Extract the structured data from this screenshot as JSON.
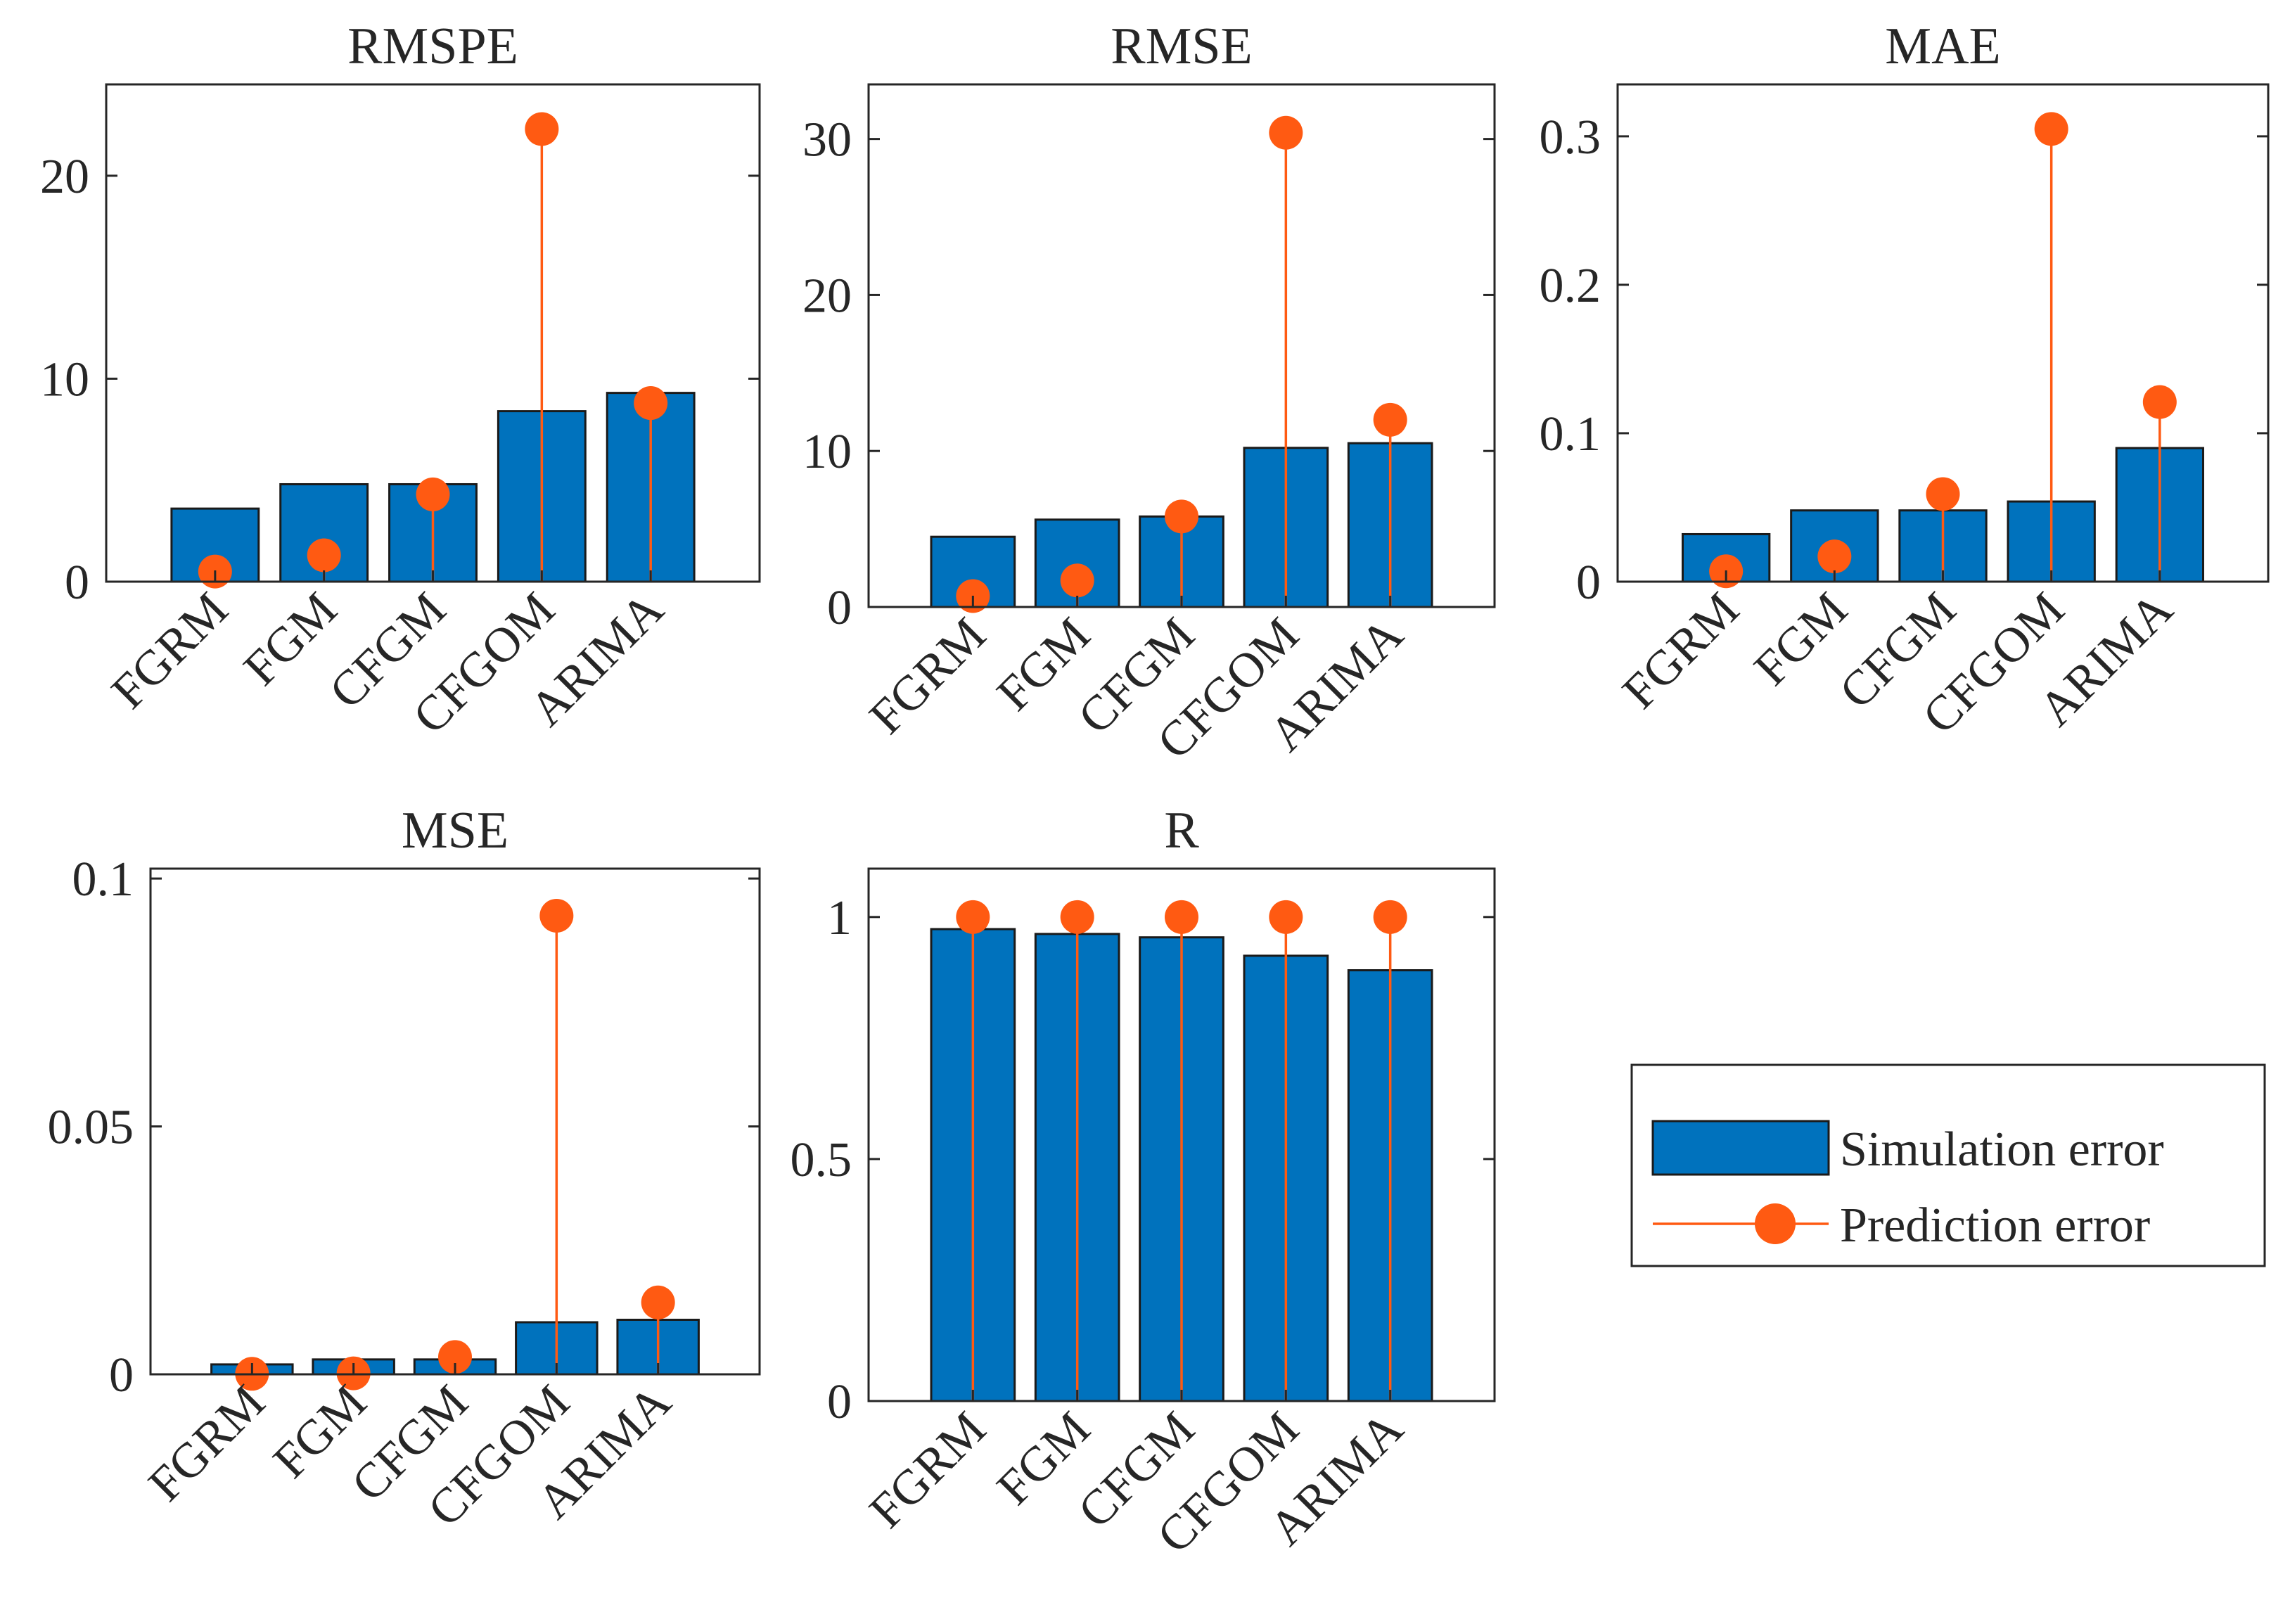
{
  "colors": {
    "bar": "#0072BD",
    "marker": "#FF5A12",
    "axis": "#262626"
  },
  "legend": {
    "simulation_label": "Simulation error",
    "prediction_label": "Prediction error"
  },
  "chart_data": [
    {
      "type": "bar",
      "title": "RMSPE",
      "categories": [
        "FGRM",
        "FGM",
        "CFGM",
        "CFGOM",
        "ARIMA"
      ],
      "series": [
        {
          "name": "Simulation error",
          "kind": "bar",
          "values": [
            3.6,
            4.8,
            4.8,
            8.4,
            9.3
          ]
        },
        {
          "name": "Prediction error",
          "kind": "stem",
          "values": [
            0.5,
            1.3,
            4.3,
            22.3,
            8.8
          ]
        }
      ],
      "ylim": [
        0,
        24.5
      ],
      "yticks": [
        0,
        10,
        20
      ],
      "ytick_labels": [
        "0",
        "10",
        "20"
      ]
    },
    {
      "type": "bar",
      "title": "RMSE",
      "categories": [
        "FGRM",
        "FGM",
        "CFGM",
        "CFGOM",
        "ARIMA"
      ],
      "series": [
        {
          "name": "Simulation error",
          "kind": "bar",
          "values": [
            4.5,
            5.6,
            5.8,
            10.2,
            10.5
          ]
        },
        {
          "name": "Prediction error",
          "kind": "stem",
          "values": [
            0.7,
            1.7,
            5.8,
            30.4,
            12.0
          ]
        }
      ],
      "ylim": [
        0,
        33.5
      ],
      "yticks": [
        0,
        10,
        20,
        30
      ],
      "ytick_labels": [
        "0",
        "10",
        "20",
        "30"
      ]
    },
    {
      "type": "bar",
      "title": "MAE",
      "categories": [
        "FGRM",
        "FGM",
        "CFGM",
        "CFGOM",
        "ARIMA"
      ],
      "series": [
        {
          "name": "Simulation error",
          "kind": "bar",
          "values": [
            0.032,
            0.048,
            0.048,
            0.054,
            0.09
          ]
        },
        {
          "name": "Prediction error",
          "kind": "stem",
          "values": [
            0.007,
            0.017,
            0.059,
            0.305,
            0.121
          ]
        }
      ],
      "ylim": [
        0,
        0.335
      ],
      "yticks": [
        0,
        0.1,
        0.2,
        0.3
      ],
      "ytick_labels": [
        "0",
        "0.1",
        "0.2",
        "0.3"
      ]
    },
    {
      "type": "bar",
      "title": "MSE",
      "categories": [
        "FGRM",
        "FGM",
        "CFGM",
        "CFGOM",
        "ARIMA"
      ],
      "series": [
        {
          "name": "Simulation error",
          "kind": "bar",
          "values": [
            0.002,
            0.003,
            0.003,
            0.0105,
            0.011
          ]
        },
        {
          "name": "Prediction error",
          "kind": "stem",
          "values": [
            0.0001,
            0.0002,
            0.0035,
            0.0925,
            0.0145
          ]
        }
      ],
      "ylim": [
        0,
        0.102
      ],
      "yticks": [
        0,
        0.05,
        0.1
      ],
      "ytick_labels": [
        "0",
        "0.05",
        "0.1"
      ]
    },
    {
      "type": "bar",
      "title": "R",
      "categories": [
        "FGRM",
        "FGM",
        "CFGM",
        "CFGOM",
        "ARIMA"
      ],
      "series": [
        {
          "name": "Simulation error",
          "kind": "bar",
          "values": [
            0.975,
            0.965,
            0.958,
            0.92,
            0.89
          ]
        },
        {
          "name": "Prediction error",
          "kind": "stem",
          "values": [
            1.0,
            1.0,
            1.0,
            1.0,
            1.0
          ]
        }
      ],
      "ylim": [
        0,
        1.1
      ],
      "yticks": [
        0,
        0.5,
        1
      ],
      "ytick_labels": [
        "0",
        "0.5",
        "1"
      ]
    }
  ]
}
